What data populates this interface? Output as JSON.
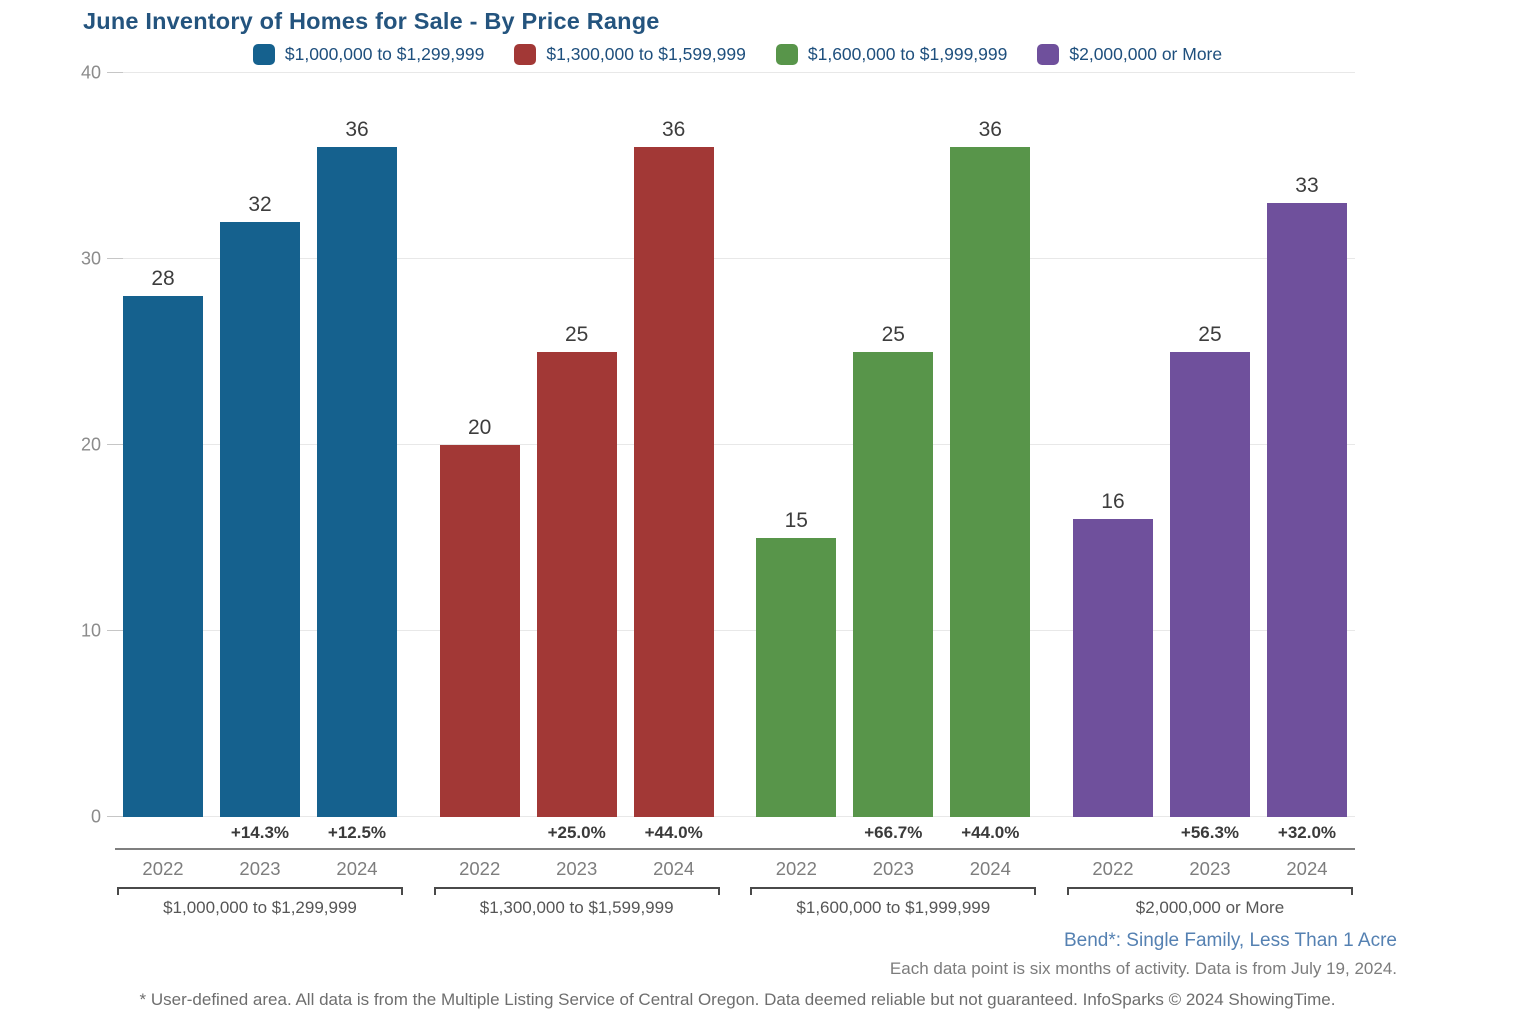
{
  "title": "June Inventory of Homes for Sale - By Price Range",
  "colors": {
    "title_text": "#24547e",
    "legend_text": "#1e4f7d",
    "area_label_text": "#5581b2",
    "series_blue": "#15618e",
    "series_red": "#a23836",
    "series_green": "#58954a",
    "series_purple": "#6f509c"
  },
  "chart_data": {
    "type": "bar",
    "title": "June Inventory of Homes for Sale - By Price Range",
    "xlabel": "",
    "ylabel": "",
    "ylim": [
      0,
      40
    ],
    "yticks": [
      0,
      10,
      20,
      30,
      40
    ],
    "grid": "horizontal",
    "legend_position": "top-center",
    "years": [
      "2022",
      "2023",
      "2024"
    ],
    "groups": [
      {
        "label": "$1,000,000 to $1,299,999",
        "color": "#15618e",
        "values": [
          28,
          32,
          36
        ],
        "pct_changes": [
          "",
          "+14.3%",
          "+12.5%"
        ]
      },
      {
        "label": "$1,300,000 to $1,599,999",
        "color": "#a23836",
        "values": [
          20,
          25,
          36
        ],
        "pct_changes": [
          "",
          "+25.0%",
          "+44.0%"
        ]
      },
      {
        "label": "$1,600,000 to $1,999,999",
        "color": "#58954a",
        "values": [
          15,
          25,
          36
        ],
        "pct_changes": [
          "",
          "+66.7%",
          "+44.0%"
        ]
      },
      {
        "label": "$2,000,000 or More",
        "color": "#6f509c",
        "values": [
          16,
          25,
          33
        ],
        "pct_changes": [
          "",
          "+56.3%",
          "+32.0%"
        ]
      }
    ]
  },
  "annotations": {
    "area_label": "Bend*: Single Family, Less Than 1 Acre",
    "data_note": "Each data point is six months of activity. Data is from July 19, 2024.",
    "footer": "* User-defined area. All data is from the Multiple Listing Service of Central Oregon. Data deemed reliable but not guaranteed. InfoSparks © 2024 ShowingTime."
  }
}
